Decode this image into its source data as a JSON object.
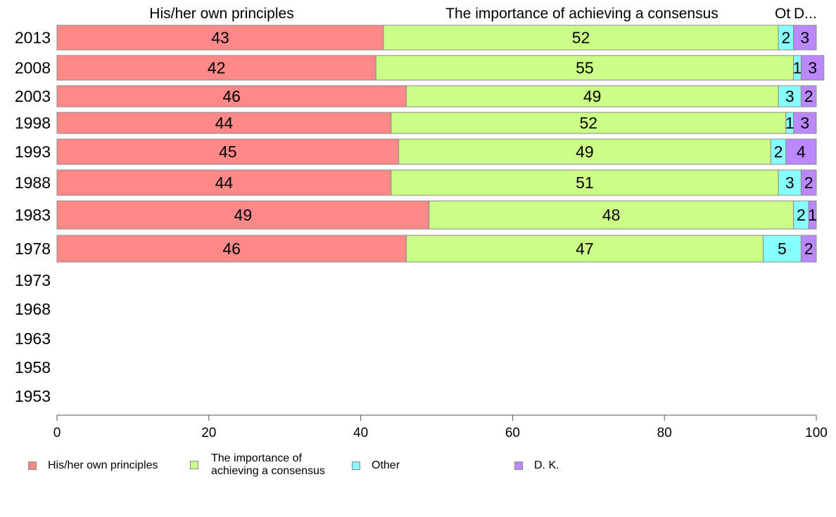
{
  "chart_data": {
    "type": "bar",
    "orientation": "horizontal",
    "stacked": true,
    "categories": [
      "2013",
      "2008",
      "2003",
      "1998",
      "1993",
      "1988",
      "1983",
      "1978",
      "1973",
      "1968",
      "1963",
      "1958",
      "1953"
    ],
    "series": [
      {
        "name": "His/her own principles",
        "color": "#ff8888",
        "values": [
          43,
          42,
          46,
          44,
          45,
          44,
          49,
          46,
          null,
          null,
          null,
          null,
          null
        ]
      },
      {
        "name": "The importance of achieving a consensus",
        "color": "#ccff88",
        "values": [
          52,
          55,
          49,
          52,
          49,
          51,
          48,
          47,
          null,
          null,
          null,
          null,
          null
        ]
      },
      {
        "name": "Other",
        "color": "#88ffff",
        "values": [
          2,
          1,
          3,
          1,
          2,
          3,
          2,
          5,
          null,
          null,
          null,
          null,
          null
        ]
      },
      {
        "name": "D. K.",
        "color": "#bb88ff",
        "values": [
          3,
          3,
          2,
          3,
          4,
          2,
          1,
          2,
          null,
          null,
          null,
          null,
          null
        ]
      }
    ],
    "top_labels": [
      "His/her own principles",
      "The importance of achieving a consensus",
      "Ot",
      "D..."
    ],
    "legend_labels": [
      "His/her own principles",
      "The importance of\nachieving a consensus",
      "Other",
      "D. K."
    ],
    "xlim": [
      0,
      100
    ],
    "xticks": [
      0,
      20,
      40,
      60,
      80,
      100
    ],
    "legend_position": "bottom",
    "grid": false
  }
}
